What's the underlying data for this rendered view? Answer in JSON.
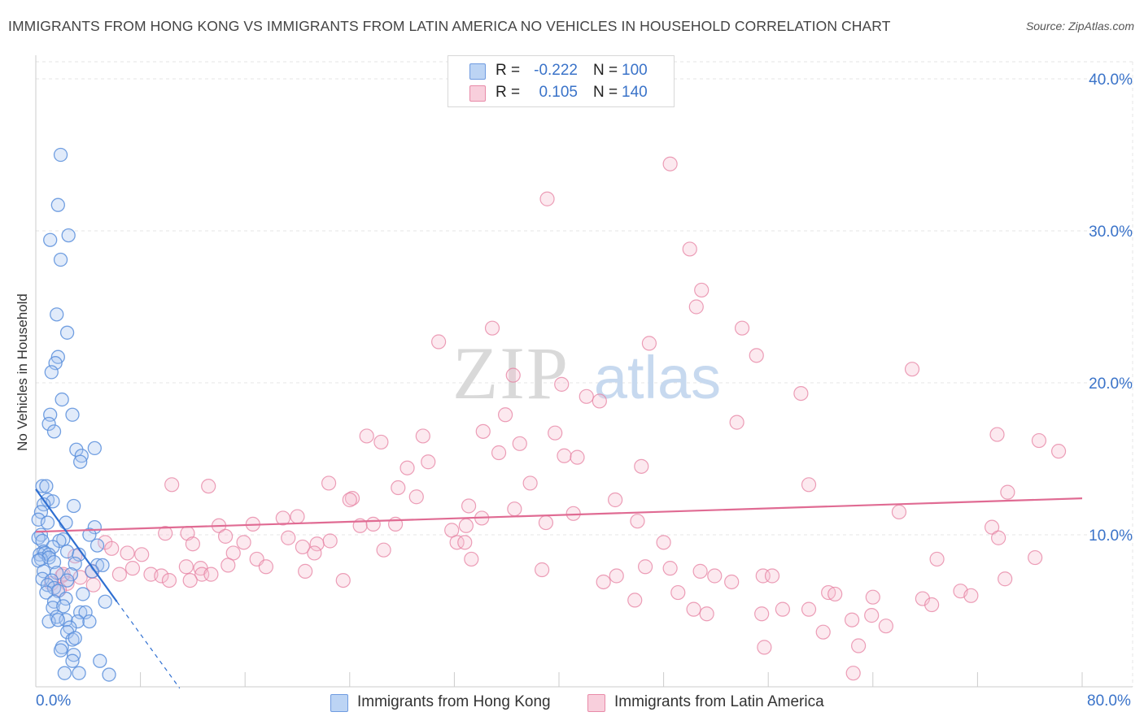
{
  "title": "IMMIGRANTS FROM HONG KONG VS IMMIGRANTS FROM LATIN AMERICA NO VEHICLES IN HOUSEHOLD CORRELATION CHART",
  "source": "Source: ZipAtlas.com",
  "watermark": {
    "zip": "ZIP",
    "atlas": "atlas"
  },
  "legend": {
    "hk": {
      "r_label": "R =",
      "r_value": "-0.222",
      "n_label": "N =",
      "n_value": "100"
    },
    "la": {
      "r_label": "R =",
      "r_value": "0.105",
      "n_label": "N =",
      "n_value": "140"
    }
  },
  "bottom_legend": {
    "hk": "Immigrants from Hong Kong",
    "la": "Immigrants from Latin America"
  },
  "colors": {
    "hk": "#5b8fdc",
    "hk_fill": "#a9c6f0",
    "la": "#e67fa0",
    "la_fill": "#f5c0d0",
    "hk_line": "#2f6fd1",
    "la_line": "#e06b93",
    "axis_text": "#3a73c9",
    "grid": "#e4e4e4"
  },
  "chart_data": {
    "type": "scatter",
    "title": "IMMIGRANTS FROM HONG KONG VS IMMIGRANTS FROM LATIN AMERICA NO VEHICLES IN HOUSEHOLD CORRELATION CHART",
    "xlabel": "",
    "ylabel": "No Vehicles in Household",
    "xlim": [
      0,
      80
    ],
    "ylim": [
      0,
      40
    ],
    "x_tick_labels": [
      "0.0%",
      "80.0%"
    ],
    "y_tick_labels": [
      "10.0%",
      "20.0%",
      "30.0%",
      "40.0%"
    ],
    "y_ticks": [
      10,
      20,
      30,
      40
    ],
    "grid": true,
    "legend_position": "top-center",
    "series": [
      {
        "name": "Immigrants from Hong Kong",
        "r": -0.222,
        "n": 100,
        "trend": {
          "x": [
            0,
            6.2
          ],
          "y": [
            13.0,
            5.6
          ],
          "dashed_to": [
            11.0,
            -0.1
          ]
        },
        "points": [
          [
            1.9,
            35.0
          ],
          [
            1.7,
            31.7
          ],
          [
            2.5,
            29.7
          ],
          [
            1.1,
            29.4
          ],
          [
            1.9,
            28.1
          ],
          [
            1.6,
            24.5
          ],
          [
            2.4,
            23.3
          ],
          [
            1.7,
            21.7
          ],
          [
            1.5,
            21.3
          ],
          [
            1.2,
            20.7
          ],
          [
            2.0,
            18.9
          ],
          [
            1.1,
            17.9
          ],
          [
            2.8,
            17.9
          ],
          [
            1.0,
            17.3
          ],
          [
            1.4,
            16.8
          ],
          [
            3.1,
            15.6
          ],
          [
            4.5,
            15.7
          ],
          [
            3.5,
            15.2
          ],
          [
            3.4,
            14.8
          ],
          [
            0.5,
            13.2
          ],
          [
            0.8,
            13.2
          ],
          [
            0.9,
            12.3
          ],
          [
            1.3,
            12.2
          ],
          [
            0.6,
            12.0
          ],
          [
            2.9,
            11.9
          ],
          [
            0.4,
            11.5
          ],
          [
            0.2,
            11.0
          ],
          [
            0.9,
            10.8
          ],
          [
            2.3,
            10.8
          ],
          [
            4.5,
            10.5
          ],
          [
            0.4,
            10.0
          ],
          [
            0.2,
            9.8
          ],
          [
            4.1,
            10.0
          ],
          [
            0.5,
            9.6
          ],
          [
            2.1,
            9.7
          ],
          [
            1.8,
            9.6
          ],
          [
            4.7,
            9.3
          ],
          [
            1.3,
            9.2
          ],
          [
            0.6,
            8.9
          ],
          [
            0.3,
            8.7
          ],
          [
            0.7,
            8.8
          ],
          [
            1.0,
            8.7
          ],
          [
            2.4,
            8.9
          ],
          [
            3.3,
            8.7
          ],
          [
            0.4,
            8.4
          ],
          [
            1.0,
            8.5
          ],
          [
            0.2,
            8.3
          ],
          [
            1.4,
            8.2
          ],
          [
            3.0,
            8.1
          ],
          [
            4.7,
            8.0
          ],
          [
            5.1,
            8.0
          ],
          [
            0.6,
            7.6
          ],
          [
            1.6,
            7.5
          ],
          [
            2.7,
            7.4
          ],
          [
            4.3,
            7.6
          ],
          [
            0.5,
            7.1
          ],
          [
            1.2,
            7.0
          ],
          [
            2.4,
            7.0
          ],
          [
            0.9,
            6.7
          ],
          [
            1.4,
            6.5
          ],
          [
            1.7,
            6.3
          ],
          [
            0.8,
            6.2
          ],
          [
            3.6,
            6.1
          ],
          [
            2.3,
            5.8
          ],
          [
            1.4,
            5.6
          ],
          [
            5.3,
            5.6
          ],
          [
            1.3,
            5.2
          ],
          [
            2.1,
            5.3
          ],
          [
            3.4,
            4.9
          ],
          [
            3.8,
            4.9
          ],
          [
            1.6,
            4.6
          ],
          [
            2.3,
            4.4
          ],
          [
            1.0,
            4.3
          ],
          [
            3.2,
            4.3
          ],
          [
            4.1,
            4.3
          ],
          [
            1.7,
            4.4
          ],
          [
            2.6,
            3.9
          ],
          [
            2.4,
            3.6
          ],
          [
            2.8,
            3.1
          ],
          [
            3.0,
            3.2
          ],
          [
            2.0,
            2.6
          ],
          [
            1.9,
            2.4
          ],
          [
            2.9,
            2.1
          ],
          [
            2.8,
            1.7
          ],
          [
            4.9,
            1.7
          ],
          [
            2.2,
            0.9
          ],
          [
            3.3,
            0.9
          ],
          [
            5.6,
            0.8
          ]
        ]
      },
      {
        "name": "Immigrants from Latin America",
        "r": 0.105,
        "n": 140,
        "trend": {
          "x": [
            0,
            80
          ],
          "y": [
            10.2,
            12.4
          ]
        },
        "points": [
          [
            48.5,
            34.4
          ],
          [
            39.1,
            32.1
          ],
          [
            50.0,
            28.8
          ],
          [
            50.9,
            26.1
          ],
          [
            50.5,
            25.0
          ],
          [
            34.9,
            23.6
          ],
          [
            54.0,
            23.6
          ],
          [
            30.8,
            22.7
          ],
          [
            46.9,
            22.6
          ],
          [
            55.1,
            21.8
          ],
          [
            67.0,
            20.9
          ],
          [
            36.5,
            20.5
          ],
          [
            40.2,
            19.9
          ],
          [
            42.1,
            19.1
          ],
          [
            43.1,
            18.8
          ],
          [
            58.5,
            19.3
          ],
          [
            35.9,
            17.9
          ],
          [
            53.6,
            17.4
          ],
          [
            34.2,
            16.8
          ],
          [
            39.7,
            16.7
          ],
          [
            29.6,
            16.5
          ],
          [
            25.3,
            16.5
          ],
          [
            26.4,
            16.1
          ],
          [
            37.0,
            16.0
          ],
          [
            35.4,
            15.4
          ],
          [
            40.4,
            15.2
          ],
          [
            41.4,
            15.1
          ],
          [
            73.5,
            16.6
          ],
          [
            76.7,
            16.2
          ],
          [
            78.2,
            15.5
          ],
          [
            30.0,
            14.8
          ],
          [
            28.4,
            14.4
          ],
          [
            46.3,
            14.5
          ],
          [
            22.4,
            13.4
          ],
          [
            27.7,
            13.1
          ],
          [
            37.8,
            13.4
          ],
          [
            59.1,
            13.3
          ],
          [
            10.4,
            13.3
          ],
          [
            13.2,
            13.2
          ],
          [
            29.1,
            12.5
          ],
          [
            24.2,
            12.4
          ],
          [
            24.0,
            12.3
          ],
          [
            44.3,
            12.3
          ],
          [
            74.3,
            12.8
          ],
          [
            33.1,
            11.9
          ],
          [
            36.6,
            11.7
          ],
          [
            41.1,
            11.4
          ],
          [
            18.9,
            11.1
          ],
          [
            20.0,
            11.2
          ],
          [
            34.1,
            11.1
          ],
          [
            39.0,
            10.8
          ],
          [
            46.0,
            10.9
          ],
          [
            66.0,
            11.5
          ],
          [
            16.6,
            10.7
          ],
          [
            24.8,
            10.6
          ],
          [
            25.8,
            10.7
          ],
          [
            14.0,
            10.6
          ],
          [
            9.9,
            10.1
          ],
          [
            11.6,
            10.1
          ],
          [
            31.8,
            10.3
          ],
          [
            32.9,
            10.6
          ],
          [
            27.5,
            10.7
          ],
          [
            14.5,
            9.9
          ],
          [
            19.3,
            9.8
          ],
          [
            20.4,
            9.2
          ],
          [
            21.5,
            9.4
          ],
          [
            32.2,
            9.5
          ],
          [
            32.8,
            9.5
          ],
          [
            22.5,
            9.6
          ],
          [
            15.9,
            9.5
          ],
          [
            12.0,
            9.4
          ],
          [
            5.3,
            9.5
          ],
          [
            7.0,
            8.8
          ],
          [
            8.1,
            8.7
          ],
          [
            15.1,
            8.8
          ],
          [
            16.9,
            8.4
          ],
          [
            21.3,
            8.8
          ],
          [
            26.6,
            9.0
          ],
          [
            48.0,
            9.5
          ],
          [
            73.1,
            10.5
          ],
          [
            73.6,
            9.8
          ],
          [
            5.8,
            9.1
          ],
          [
            3.0,
            8.6
          ],
          [
            2.0,
            7.3
          ],
          [
            7.4,
            7.8
          ],
          [
            11.5,
            7.9
          ],
          [
            12.6,
            7.8
          ],
          [
            14.7,
            8.0
          ],
          [
            17.6,
            7.9
          ],
          [
            20.6,
            7.6
          ],
          [
            33.3,
            8.4
          ],
          [
            38.7,
            7.7
          ],
          [
            46.6,
            7.9
          ],
          [
            48.5,
            7.8
          ],
          [
            50.8,
            7.6
          ],
          [
            12.7,
            7.4
          ],
          [
            8.8,
            7.4
          ],
          [
            9.6,
            7.3
          ],
          [
            13.4,
            7.4
          ],
          [
            6.4,
            7.4
          ],
          [
            2.4,
            6.8
          ],
          [
            3.4,
            7.2
          ],
          [
            4.3,
            7.6
          ],
          [
            4.4,
            6.7
          ],
          [
            1.2,
            6.8
          ],
          [
            1.8,
            6.4
          ],
          [
            23.5,
            7.0
          ],
          [
            10.2,
            7.0
          ],
          [
            11.8,
            7.0
          ],
          [
            43.4,
            6.9
          ],
          [
            44.4,
            7.3
          ],
          [
            51.9,
            7.3
          ],
          [
            53.2,
            6.9
          ],
          [
            55.6,
            7.3
          ],
          [
            56.3,
            7.3
          ],
          [
            60.6,
            6.2
          ],
          [
            61.1,
            6.1
          ],
          [
            49.1,
            6.2
          ],
          [
            64.0,
            5.9
          ],
          [
            67.8,
            5.8
          ],
          [
            70.7,
            6.3
          ],
          [
            71.5,
            6.0
          ],
          [
            74.1,
            7.1
          ],
          [
            45.8,
            5.7
          ],
          [
            50.3,
            5.1
          ],
          [
            51.3,
            4.8
          ],
          [
            57.1,
            5.1
          ],
          [
            59.1,
            5.1
          ],
          [
            55.5,
            4.8
          ],
          [
            62.4,
            4.4
          ],
          [
            63.9,
            4.7
          ],
          [
            60.2,
            3.6
          ],
          [
            55.7,
            2.6
          ],
          [
            62.9,
            2.7
          ],
          [
            65.0,
            4.0
          ],
          [
            68.5,
            5.4
          ],
          [
            76.4,
            8.5
          ],
          [
            68.9,
            8.4
          ],
          [
            62.5,
            0.9
          ],
          [
            2.1,
            7.4
          ]
        ]
      }
    ]
  }
}
